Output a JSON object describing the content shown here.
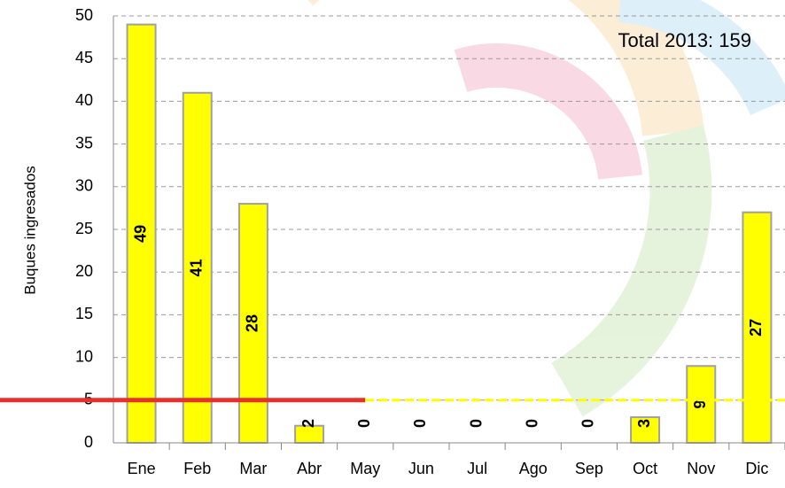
{
  "chart_data": {
    "type": "bar",
    "y_axis_label": "Buques ingresados",
    "annotation": "Total 2013: 159",
    "categories": [
      "Ene",
      "Feb",
      "Mar",
      "Abr",
      "May",
      "Jun",
      "Jul",
      "Ago",
      "Sep",
      "Oct",
      "Nov",
      "Dic"
    ],
    "values": [
      49,
      41,
      28,
      2,
      0,
      0,
      0,
      0,
      0,
      3,
      9,
      27
    ],
    "color": "#ffff00",
    "ylim": [
      0,
      50
    ],
    "yticks": [
      0,
      5,
      10,
      15,
      20,
      25,
      30,
      35,
      40,
      45,
      50
    ],
    "grid": true,
    "reference_line": {
      "value": 5,
      "color": "#e8302a"
    }
  }
}
